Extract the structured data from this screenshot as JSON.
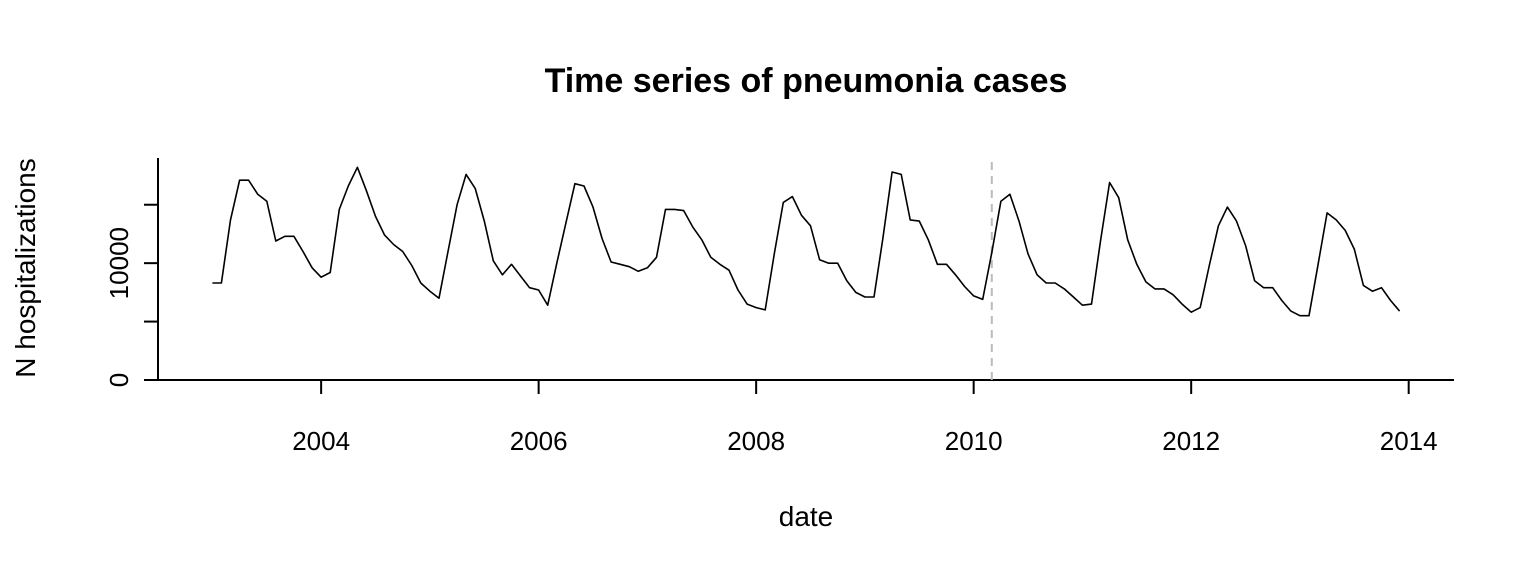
{
  "chart_data": {
    "type": "line",
    "title": "Time series of pneumonia cases",
    "xlabel": "date",
    "ylabel": "N hospitalizations",
    "x_ticks": [
      "2004",
      "2006",
      "2008",
      "2010",
      "2012",
      "2014"
    ],
    "y_ticks": [
      "0",
      "10000"
    ],
    "xlim": [
      "2002-07-01",
      "2014-06-01"
    ],
    "ylim": [
      0,
      19000
    ],
    "grid": false,
    "legend": "none",
    "vline": {
      "date": "2010-03-01",
      "style": "dashed",
      "color": "#bbbbbb"
    },
    "series": [
      {
        "color": "#000000",
        "x": [
          "2003-01",
          "2003-02",
          "2003-03",
          "2003-04",
          "2003-05",
          "2003-06",
          "2003-07",
          "2003-08",
          "2003-09",
          "2003-10",
          "2003-11",
          "2003-12",
          "2004-01",
          "2004-02",
          "2004-03",
          "2004-04",
          "2004-05",
          "2004-06",
          "2004-07",
          "2004-08",
          "2004-09",
          "2004-10",
          "2004-11",
          "2004-12",
          "2005-01",
          "2005-02",
          "2005-03",
          "2005-04",
          "2005-05",
          "2005-06",
          "2005-07",
          "2005-08",
          "2005-09",
          "2005-10",
          "2005-11",
          "2005-12",
          "2006-01",
          "2006-02",
          "2006-03",
          "2006-04",
          "2006-05",
          "2006-06",
          "2006-07",
          "2006-08",
          "2006-09",
          "2006-10",
          "2006-11",
          "2006-12",
          "2007-01",
          "2007-02",
          "2007-03",
          "2007-04",
          "2007-05",
          "2007-06",
          "2007-07",
          "2007-08",
          "2007-09",
          "2007-10",
          "2007-11",
          "2007-12",
          "2008-01",
          "2008-02",
          "2008-03",
          "2008-04",
          "2008-05",
          "2008-06",
          "2008-07",
          "2008-08",
          "2008-09",
          "2008-10",
          "2008-11",
          "2008-12",
          "2009-01",
          "2009-02",
          "2009-03",
          "2009-04",
          "2009-05",
          "2009-06",
          "2009-07",
          "2009-08",
          "2009-09",
          "2009-10",
          "2009-11",
          "2009-12",
          "2010-01",
          "2010-02",
          "2010-03",
          "2010-04",
          "2010-05",
          "2010-06",
          "2010-07",
          "2010-08",
          "2010-09",
          "2010-10",
          "2010-11",
          "2010-12",
          "2011-01",
          "2011-02",
          "2011-03",
          "2011-04",
          "2011-05",
          "2011-06",
          "2011-07",
          "2011-08",
          "2011-09",
          "2011-10",
          "2011-11",
          "2011-12",
          "2012-01",
          "2012-02",
          "2012-03",
          "2012-04",
          "2012-05",
          "2012-06",
          "2012-07",
          "2012-08",
          "2012-09",
          "2012-10",
          "2012-11",
          "2012-12",
          "2013-01",
          "2013-02",
          "2013-03",
          "2013-04",
          "2013-05",
          "2013-06",
          "2013-07",
          "2013-08",
          "2013-09",
          "2013-10",
          "2013-11",
          "2013-12"
        ],
        "values": [
          8300,
          8300,
          13700,
          17100,
          17100,
          15900,
          15300,
          11900,
          12300,
          12300,
          11000,
          9600,
          8800,
          9200,
          14600,
          16600,
          18200,
          16200,
          14000,
          12400,
          11600,
          11000,
          9800,
          8300,
          7600,
          7000,
          11000,
          15000,
          17600,
          16400,
          13600,
          10200,
          9000,
          9900,
          8900,
          7900,
          7700,
          6400,
          10000,
          13400,
          16800,
          16600,
          14800,
          12100,
          10100,
          9900,
          9700,
          9300,
          9600,
          10500,
          14600,
          14600,
          14500,
          13100,
          12000,
          10500,
          9900,
          9400,
          7700,
          6500,
          6200,
          6000,
          10800,
          15200,
          15700,
          14100,
          13200,
          10300,
          10000,
          10000,
          8500,
          7500,
          7100,
          7100,
          12200,
          17800,
          17600,
          13700,
          13600,
          12000,
          9900,
          9900,
          9000,
          8000,
          7200,
          6900,
          10900,
          15300,
          15900,
          13600,
          10800,
          9000,
          8300,
          8300,
          7800,
          7100,
          6400,
          6500,
          11900,
          16900,
          15600,
          12000,
          9900,
          8400,
          7800,
          7800,
          7300,
          6500,
          5800,
          6200,
          9800,
          13200,
          14800,
          13600,
          11500,
          8500,
          7900,
          7900,
          6800,
          5900,
          5500,
          5500,
          9900,
          14300,
          13700,
          12800,
          11200,
          8100,
          7600,
          7900,
          6800,
          5900
        ]
      }
    ]
  }
}
